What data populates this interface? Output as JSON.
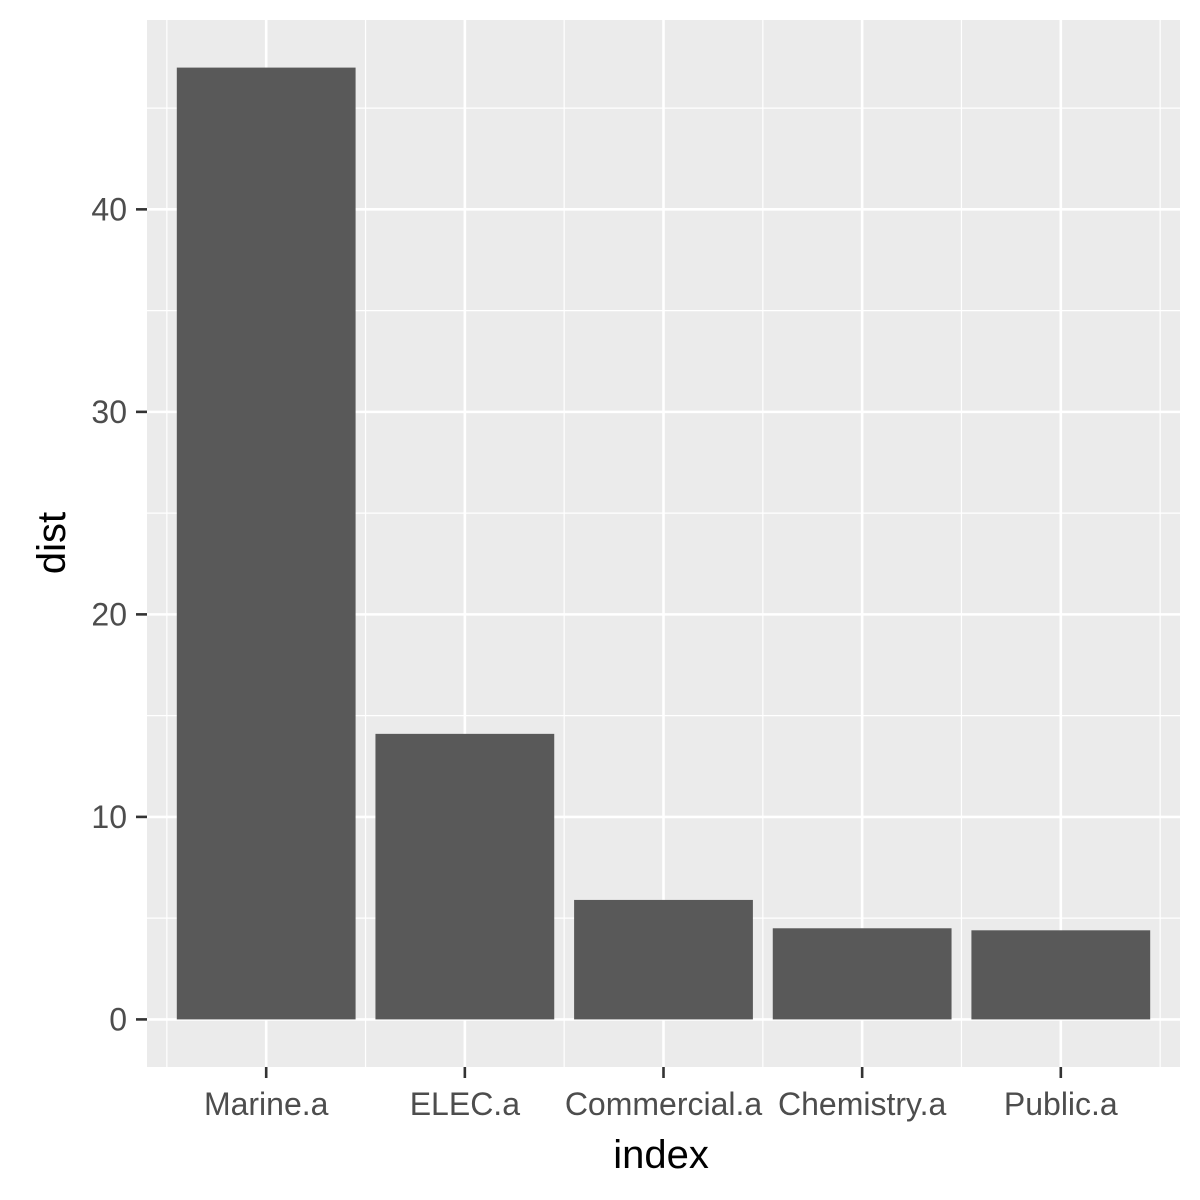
{
  "chart_data": {
    "type": "bar",
    "categories": [
      "Marine.a",
      "ELEC.a",
      "Commercial.a",
      "Chemistry.a",
      "Public.a"
    ],
    "values": [
      47.0,
      14.1,
      5.9,
      4.5,
      4.4
    ],
    "xlabel": "index",
    "ylabel": "dist",
    "ylim": [
      -2.35,
      49.35
    ],
    "yticks": [
      0,
      10,
      20,
      30,
      40
    ],
    "ytick_labels": [
      "0",
      "10",
      "20",
      "30",
      "40"
    ],
    "grid": true,
    "legend": "none",
    "colors": {
      "bar": "#595959",
      "panel": "#ebebeb",
      "grid": "#ffffff",
      "tick": "#333333"
    }
  }
}
